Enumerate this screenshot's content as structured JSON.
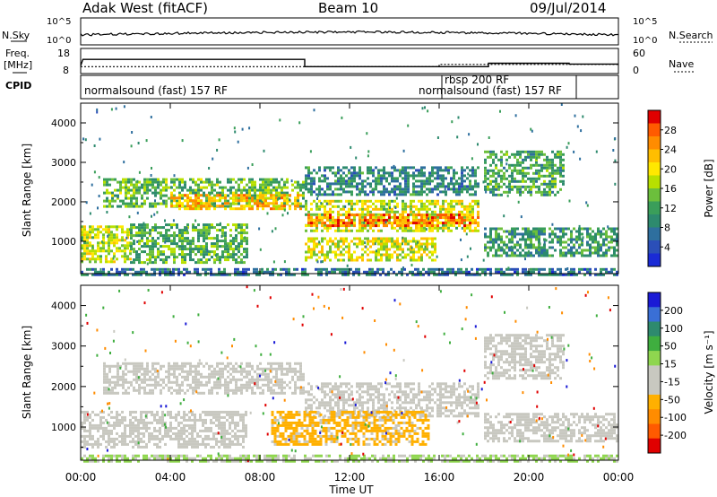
{
  "header": {
    "station": "Adak West (fitACF)",
    "beam": "Beam 10",
    "date": "09/Jul/2014"
  },
  "status": {
    "nsky_label": "N.Sky",
    "nsearch_label": "N.Search",
    "freq_label_1": "Freq.",
    "freq_label_2": "[MHz]",
    "nave_label": "Nave",
    "cpid_label": "CPID",
    "nsky_ticks": [
      "10^5",
      "10^0"
    ],
    "nsearch_ticks": [
      "10^5",
      "10^0"
    ],
    "freq_ticks": [
      "18",
      "8"
    ],
    "nave_ticks": [
      "60",
      "0"
    ],
    "cpid_segments": [
      {
        "label": "normalsound (fast) 157 RF",
        "start_hour": 0.0
      },
      {
        "label": "rbsp 200 RF",
        "start_hour": 16.0
      },
      {
        "label": "normalsound (fast) 157 RF",
        "start_hour": 16.0
      }
    ],
    "freq_mhz": [
      {
        "t": 0.0,
        "v": 10.8
      },
      {
        "t": 0.1,
        "v": 13.8
      },
      {
        "t": 10.0,
        "v": 13.8
      },
      {
        "t": 10.0,
        "v": 10.4
      },
      {
        "t": 18.2,
        "v": 10.4
      },
      {
        "t": 18.2,
        "v": 12.0
      },
      {
        "t": 21.8,
        "v": 12.0
      },
      {
        "t": 21.8,
        "v": 11.6
      },
      {
        "t": 24.0,
        "v": 11.6
      }
    ],
    "nave": [
      {
        "t": 0.0,
        "v": 16
      },
      {
        "t": 16.0,
        "v": 16
      },
      {
        "t": 16.0,
        "v": 22
      },
      {
        "t": 24.0,
        "v": 22
      }
    ]
  },
  "chart_data": [
    {
      "type": "heatmap",
      "title": "",
      "xlabel": "",
      "ylabel": "Slant Range [km]",
      "xlim": [
        0,
        24
      ],
      "ylim": [
        180,
        4500
      ],
      "xticks_hours": [
        0,
        4,
        8,
        12,
        16,
        20,
        24
      ],
      "yticks": [
        1000,
        2000,
        3000,
        4000
      ],
      "ytick_labels": [
        "1000",
        "2000",
        "3000",
        "4000"
      ],
      "colorbar": {
        "label": "Power [dB]",
        "ticks": [
          "28",
          "24",
          "20",
          "16",
          "12",
          "8",
          "4"
        ],
        "colors": [
          "#e00000",
          "#ff5a00",
          "#ff8c00",
          "#ffbe00",
          "#ffe800",
          "#b8e000",
          "#6cbf3c",
          "#3a9e5a",
          "#2d8a6e",
          "#2e6f9e",
          "#2b4fb8",
          "#1a2bd6"
        ]
      },
      "bands": [
        {
          "t0": 0.0,
          "t1": 2.2,
          "r0": 500,
          "r1": 1400,
          "value": 17
        },
        {
          "t0": 2.2,
          "t1": 7.4,
          "r0": 450,
          "r1": 1450,
          "value": 12
        },
        {
          "t0": 1.0,
          "t1": 10.0,
          "r0": 1850,
          "r1": 2600,
          "value": 13
        },
        {
          "t0": 4.0,
          "t1": 9.8,
          "r0": 1850,
          "r1": 2200,
          "value": 22
        },
        {
          "t0": 10.0,
          "t1": 17.8,
          "r0": 1250,
          "r1": 2050,
          "value": 17
        },
        {
          "t0": 10.0,
          "t1": 17.8,
          "r0": 1400,
          "r1": 1700,
          "value": 25
        },
        {
          "t0": 10.0,
          "t1": 15.8,
          "r0": 500,
          "r1": 1100,
          "value": 18
        },
        {
          "t0": 10.0,
          "t1": 17.8,
          "r0": 2200,
          "r1": 2900,
          "value": 8
        },
        {
          "t0": 18.0,
          "t1": 24.0,
          "r0": 650,
          "r1": 1350,
          "value": 10
        },
        {
          "t0": 18.0,
          "t1": 21.5,
          "r0": 2200,
          "r1": 3300,
          "value": 11
        },
        {
          "t0": 0.0,
          "t1": 24.0,
          "r0": 180,
          "r1": 320,
          "value": 6
        }
      ]
    },
    {
      "type": "heatmap",
      "title": "",
      "xlabel": "Time UT",
      "ylabel": "Slant Range [km]",
      "xlim": [
        0,
        24
      ],
      "ylim": [
        180,
        4500
      ],
      "xticks_hours": [
        0,
        4,
        8,
        12,
        16,
        20,
        24
      ],
      "xtick_labels": [
        "00:00",
        "04:00",
        "08:00",
        "12:00",
        "16:00",
        "20:00",
        "00:00"
      ],
      "yticks": [
        1000,
        2000,
        3000,
        4000
      ],
      "ytick_labels": [
        "1000",
        "2000",
        "3000",
        "4000"
      ],
      "colorbar": {
        "label": "Velocity [m s⁻¹]",
        "ticks": [
          "200",
          "100",
          "50",
          "15",
          "-15",
          "-50",
          "-100",
          "-200"
        ],
        "colors": [
          "#1a1ad6",
          "#3a6fd6",
          "#2e8a6e",
          "#3fae3f",
          "#8fd64f",
          "#c8c8c0",
          "#c8c8c0",
          "#ffb000",
          "#ff8c00",
          "#ff5a00",
          "#e00000"
        ]
      },
      "bands": [
        {
          "t0": 0.0,
          "t1": 7.4,
          "r0": 500,
          "r1": 1400,
          "value": 0
        },
        {
          "t0": 1.0,
          "t1": 10.0,
          "r0": 1850,
          "r1": 2600,
          "value": 0
        },
        {
          "t0": 10.0,
          "t1": 17.8,
          "r0": 1250,
          "r1": 2100,
          "value": 0
        },
        {
          "t0": 8.5,
          "t1": 15.5,
          "r0": 550,
          "r1": 1400,
          "value": -40
        },
        {
          "t0": 18.0,
          "t1": 24.0,
          "r0": 650,
          "r1": 1350,
          "value": 0
        },
        {
          "t0": 18.0,
          "t1": 21.5,
          "r0": 2200,
          "r1": 3300,
          "value": 0
        },
        {
          "t0": 0.0,
          "t1": 24.0,
          "r0": 180,
          "r1": 320,
          "value": 20
        }
      ]
    }
  ]
}
